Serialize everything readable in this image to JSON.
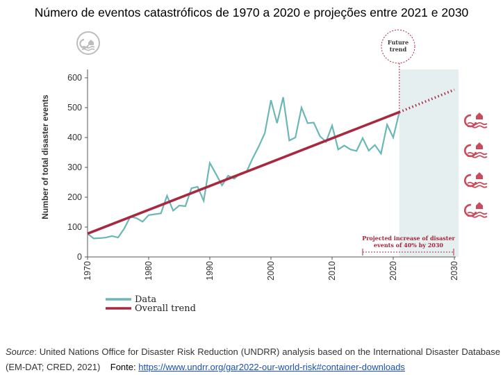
{
  "title": "Número de eventos catastróficos de 1970 a 2020 e projeções entre 2021 e 2030",
  "chart_data": {
    "type": "line",
    "ylabel": "Number of total disaster events",
    "xlabel": "",
    "xlim": [
      1970,
      2030
    ],
    "ylim": [
      0,
      600
    ],
    "x_ticks": [
      1970,
      1980,
      1990,
      2000,
      2010,
      2020,
      2030
    ],
    "y_ticks": [
      0,
      100,
      200,
      300,
      400,
      500,
      600
    ],
    "grid": false,
    "legend_position": "bottom-left",
    "series": [
      {
        "name": "Data",
        "color": "#6ab8b5",
        "x": [
          1970,
          1971,
          1972,
          1973,
          1974,
          1975,
          1976,
          1977,
          1978,
          1979,
          1980,
          1981,
          1982,
          1983,
          1984,
          1985,
          1986,
          1987,
          1988,
          1989,
          1990,
          1991,
          1992,
          1993,
          1994,
          1995,
          1996,
          1997,
          1998,
          1999,
          2000,
          2001,
          2002,
          2003,
          2004,
          2005,
          2006,
          2007,
          2008,
          2009,
          2010,
          2011,
          2012,
          2013,
          2014,
          2015,
          2016,
          2017,
          2018,
          2019,
          2020,
          2021
        ],
        "y": [
          78,
          62,
          63,
          65,
          70,
          65,
          95,
          135,
          130,
          118,
          140,
          143,
          146,
          205,
          155,
          172,
          170,
          230,
          235,
          188,
          315,
          278,
          240,
          272,
          262,
          280,
          285,
          330,
          370,
          415,
          525,
          448,
          535,
          390,
          400,
          500,
          448,
          450,
          405,
          385,
          440,
          360,
          373,
          360,
          355,
          398,
          356,
          375,
          346,
          443,
          400,
          485
        ]
      },
      {
        "name": "Overall trend",
        "color": "#a8283f",
        "x": [
          1970,
          2021
        ],
        "y": [
          78,
          485
        ],
        "projection": {
          "x": [
            2021,
            2030
          ],
          "y": [
            485,
            560
          ],
          "style": "dotted"
        }
      }
    ],
    "annotations": {
      "future_marker": "Future trend",
      "projection_note": "Projected increase of disaster events of 40% by 2030",
      "projection_range": [
        2015,
        2030
      ],
      "shaded_future_range": [
        2021,
        2030
      ]
    }
  },
  "source": {
    "label": "Source",
    "text": ": United Nations Office for Disaster Risk Reduction (UNDRR) analysis based on the International Disaster Database (EM-DAT; CRED, 2021)",
    "fonte_label": "Fonte:",
    "fonte_link": "https://www.undrr.org/gar2022-our-world-risk#container-downloads"
  },
  "icons": {
    "header": "hazard-icon",
    "side": [
      "hazard-icon",
      "hazard-icon",
      "hazard-icon",
      "hazard-icon"
    ],
    "accent_color": "#c94a5c"
  }
}
